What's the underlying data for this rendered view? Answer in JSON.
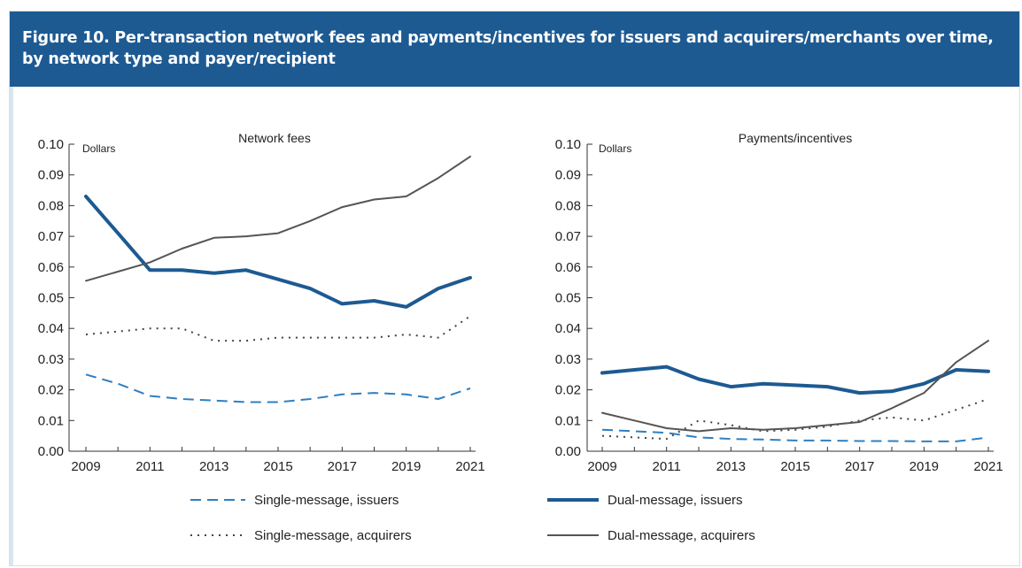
{
  "figure": {
    "title": "Figure 10. Per-transaction network fees and payments/incentives for issuers and acquirers/merchants over time, by network type and payer/recipient",
    "colors": {
      "header_bg": "#1d5a92",
      "dark_blue": "#1d5a92",
      "light_blue": "#2f7fc1",
      "gray": "#555555",
      "dotted": "#444444"
    }
  },
  "chart_data": [
    {
      "type": "line",
      "title": "Network fees",
      "ylabel": "Dollars",
      "ylim": [
        0,
        0.1
      ],
      "yticks": [
        "0.00",
        "0.01",
        "0.02",
        "0.03",
        "0.04",
        "0.05",
        "0.06",
        "0.07",
        "0.08",
        "0.09",
        "0.10"
      ],
      "xticks": [
        "2009",
        "2011",
        "2013",
        "2015",
        "2017",
        "2019",
        "2021"
      ],
      "x": [
        2009,
        2010,
        2011,
        2012,
        2013,
        2014,
        2015,
        2016,
        2017,
        2018,
        2019,
        2020,
        2021
      ],
      "series": [
        {
          "name": "Single-message, issuers",
          "style": "dashed",
          "values": [
            0.025,
            0.022,
            0.018,
            0.017,
            0.0165,
            0.016,
            0.016,
            0.017,
            0.0185,
            0.019,
            0.0185,
            0.017,
            0.0205
          ]
        },
        {
          "name": "Single-message, acquirers",
          "style": "dotted",
          "values": [
            0.038,
            0.039,
            0.04,
            0.04,
            0.036,
            0.036,
            0.037,
            0.037,
            0.037,
            0.037,
            0.038,
            0.037,
            0.044
          ]
        },
        {
          "name": "Dual-message, issuers",
          "style": "thick",
          "values": [
            0.083,
            0.071,
            0.059,
            0.059,
            0.058,
            0.059,
            0.056,
            0.053,
            0.048,
            0.049,
            0.047,
            0.053,
            0.0565
          ]
        },
        {
          "name": "Dual-message, acquirers",
          "style": "thin",
          "values": [
            0.0555,
            0.0585,
            0.0615,
            0.066,
            0.0695,
            0.07,
            0.071,
            0.075,
            0.0795,
            0.082,
            0.083,
            0.089,
            0.096
          ]
        }
      ]
    },
    {
      "type": "line",
      "title": "Payments/incentives",
      "ylabel": "Dollars",
      "ylim": [
        0,
        0.1
      ],
      "yticks": [
        "0.00",
        "0.01",
        "0.02",
        "0.03",
        "0.04",
        "0.05",
        "0.06",
        "0.07",
        "0.08",
        "0.09",
        "0.10"
      ],
      "xticks": [
        "2009",
        "2011",
        "2013",
        "2015",
        "2017",
        "2019",
        "2021"
      ],
      "x": [
        2009,
        2010,
        2011,
        2012,
        2013,
        2014,
        2015,
        2016,
        2017,
        2018,
        2019,
        2020,
        2021
      ],
      "series": [
        {
          "name": "Single-message, issuers",
          "style": "dashed",
          "values": [
            0.007,
            0.0065,
            0.006,
            0.0045,
            0.004,
            0.0038,
            0.0035,
            0.0035,
            0.0033,
            0.0033,
            0.0032,
            0.0032,
            0.0045
          ]
        },
        {
          "name": "Single-message, acquirers",
          "style": "dotted",
          "values": [
            0.005,
            0.0045,
            0.004,
            0.01,
            0.0085,
            0.0065,
            0.007,
            0.008,
            0.01,
            0.011,
            0.01,
            0.0135,
            0.017
          ]
        },
        {
          "name": "Dual-message, issuers",
          "style": "thick",
          "values": [
            0.0255,
            0.0265,
            0.0275,
            0.0235,
            0.021,
            0.022,
            0.0215,
            0.021,
            0.019,
            0.0195,
            0.022,
            0.0265,
            0.026
          ]
        },
        {
          "name": "Dual-message, acquirers",
          "style": "thin",
          "values": [
            0.0125,
            0.01,
            0.0075,
            0.0065,
            0.0075,
            0.007,
            0.0075,
            0.0085,
            0.0095,
            0.014,
            0.019,
            0.029,
            0.036
          ]
        }
      ]
    }
  ],
  "legend": [
    {
      "label": "Single-message, issuers",
      "style": "dashed"
    },
    {
      "label": "Dual-message, issuers",
      "style": "thick"
    },
    {
      "label": "Single-message, acquirers",
      "style": "dotted"
    },
    {
      "label": "Dual-message, acquirers",
      "style": "thin"
    }
  ]
}
